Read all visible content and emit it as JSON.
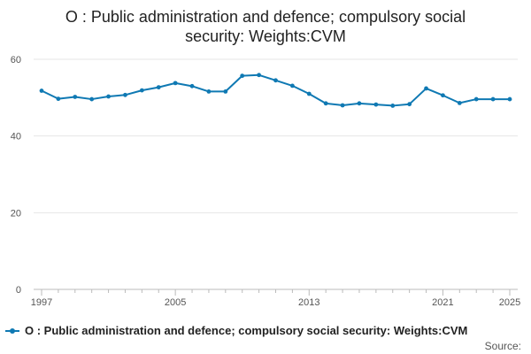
{
  "chart_data": {
    "type": "line",
    "title_line1": "O : Public administration and defence; compulsory social",
    "title_line2": "security: Weights:CVM",
    "xlabel": "",
    "ylabel": "",
    "ylim": [
      0,
      60
    ],
    "yticks": [
      0,
      20,
      40,
      60
    ],
    "xlim": [
      1997,
      2025
    ],
    "xticks": [
      1997,
      2005,
      2013,
      2021,
      2025
    ],
    "grid": true,
    "legend_position": "bottom",
    "series": [
      {
        "name": "O : Public administration and defence; compulsory social security: Weights:CVM",
        "color": "#0f79b3",
        "x": [
          1997,
          1998,
          1999,
          2000,
          2001,
          2002,
          2003,
          2004,
          2005,
          2006,
          2007,
          2008,
          2009,
          2010,
          2011,
          2012,
          2013,
          2014,
          2015,
          2016,
          2017,
          2018,
          2019,
          2020,
          2021,
          2022,
          2023,
          2024,
          2025
        ],
        "values": [
          51.8,
          49.7,
          50.2,
          49.6,
          50.3,
          50.7,
          51.9,
          52.7,
          53.8,
          53.0,
          51.6,
          51.6,
          55.7,
          55.9,
          54.5,
          53.1,
          51.0,
          48.5,
          48.0,
          48.5,
          48.2,
          47.9,
          48.3,
          52.4,
          50.6,
          48.6,
          49.6,
          49.6,
          49.6
        ]
      }
    ],
    "source_label": "Source:"
  }
}
